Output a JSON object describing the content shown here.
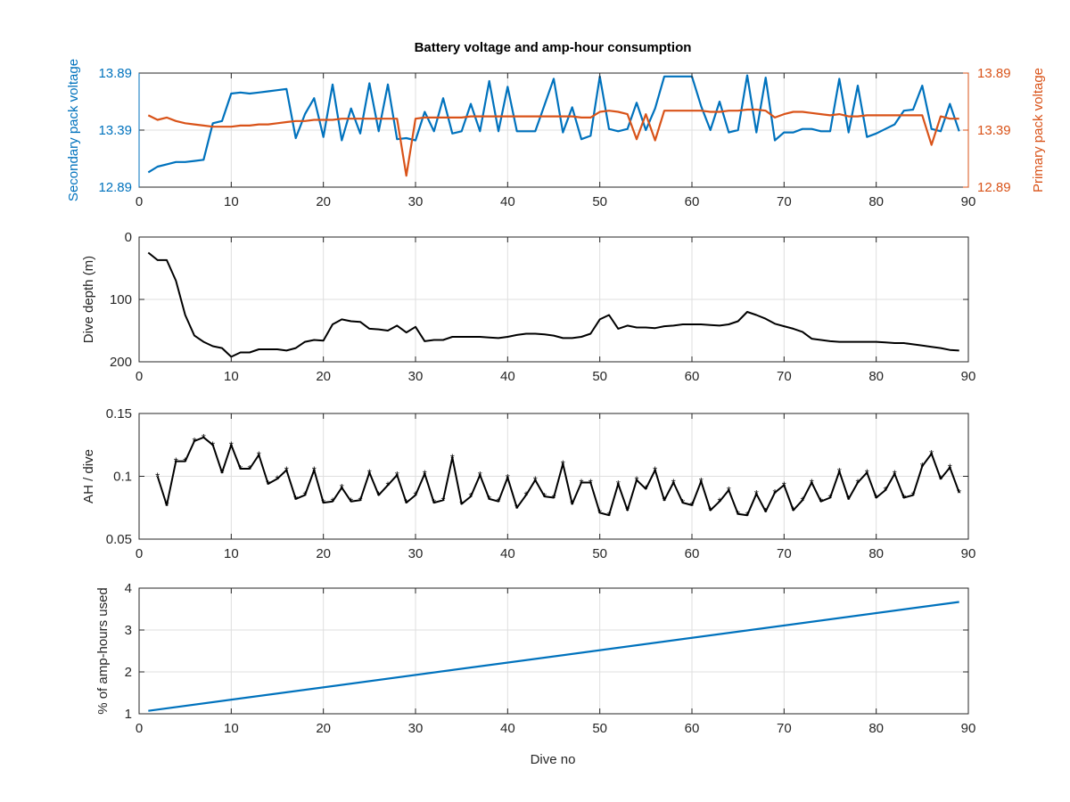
{
  "chart_data": [
    {
      "type": "line",
      "title": "Battery voltage and amp-hour consumption",
      "xlabel": "",
      "xlim": [
        0,
        90
      ],
      "xticks": [
        0,
        10,
        20,
        30,
        40,
        50,
        60,
        70,
        80,
        90
      ],
      "ylabel": "Secondary pack voltage",
      "ylim": [
        12.89,
        13.89
      ],
      "yticks": [
        "12.89",
        "13.39",
        "13.89"
      ],
      "y2label": "Primary pack voltage",
      "y2lim": [
        12.89,
        13.89
      ],
      "y2ticks": [
        "12.89",
        "13.39",
        "13.89"
      ],
      "grid": true,
      "colors": {
        "left": "#0072BD",
        "right": "#D95319"
      },
      "series": [
        {
          "axis": "left",
          "x": [
            1,
            2,
            3,
            4,
            5,
            6,
            7,
            8,
            9,
            10,
            11,
            12,
            13,
            14,
            15,
            16,
            17,
            18,
            19,
            20,
            21,
            22,
            23,
            24,
            25,
            26,
            27,
            28,
            29,
            30,
            31,
            32,
            33,
            34,
            35,
            36,
            37,
            38,
            39,
            40,
            41,
            42,
            43,
            44,
            45,
            46,
            47,
            48,
            49,
            50,
            51,
            52,
            53,
            54,
            55,
            56,
            57,
            58,
            59,
            60,
            61,
            62,
            63,
            64,
            65,
            66,
            67,
            68,
            69,
            70,
            71,
            72,
            73,
            74,
            75,
            76,
            77,
            78,
            79,
            80,
            81,
            82,
            83,
            84,
            85,
            86,
            87,
            88,
            89
          ],
          "values": [
            13.02,
            13.07,
            13.09,
            13.11,
            13.11,
            13.12,
            13.13,
            13.45,
            13.47,
            13.71,
            13.72,
            13.71,
            13.72,
            13.73,
            13.74,
            13.75,
            13.32,
            13.53,
            13.67,
            13.33,
            13.79,
            13.3,
            13.58,
            13.36,
            13.8,
            13.38,
            13.79,
            13.31,
            13.32,
            13.3,
            13.55,
            13.38,
            13.67,
            13.36,
            13.38,
            13.62,
            13.38,
            13.82,
            13.38,
            13.77,
            13.38,
            13.38,
            13.38,
            13.61,
            13.84,
            13.37,
            13.59,
            13.31,
            13.34,
            13.86,
            13.4,
            13.38,
            13.4,
            13.63,
            13.39,
            13.58,
            13.86,
            13.86,
            13.86,
            13.86,
            13.6,
            13.39,
            13.64,
            13.37,
            13.39,
            13.87,
            13.37,
            13.85,
            13.3,
            13.37,
            13.37,
            13.4,
            13.4,
            13.38,
            13.38,
            13.84,
            13.37,
            13.78,
            13.33,
            13.36,
            13.4,
            13.44,
            13.56,
            13.57,
            13.78,
            13.4,
            13.38,
            13.62,
            13.38
          ]
        },
        {
          "axis": "right",
          "x": [
            1,
            2,
            3,
            4,
            5,
            6,
            7,
            8,
            9,
            10,
            11,
            12,
            13,
            14,
            15,
            16,
            17,
            18,
            19,
            20,
            21,
            22,
            23,
            24,
            25,
            26,
            27,
            28,
            29,
            30,
            31,
            32,
            33,
            34,
            35,
            36,
            37,
            38,
            39,
            40,
            41,
            42,
            43,
            44,
            45,
            46,
            47,
            48,
            49,
            50,
            51,
            52,
            53,
            54,
            55,
            56,
            57,
            58,
            59,
            60,
            61,
            62,
            63,
            64,
            65,
            66,
            67,
            68,
            69,
            70,
            71,
            72,
            73,
            74,
            75,
            76,
            77,
            78,
            79,
            80,
            81,
            82,
            83,
            84,
            85,
            86,
            87,
            88,
            89
          ],
          "values": [
            13.52,
            13.48,
            13.5,
            13.47,
            13.45,
            13.44,
            13.43,
            13.42,
            13.42,
            13.42,
            13.43,
            13.43,
            13.44,
            13.44,
            13.45,
            13.46,
            13.47,
            13.47,
            13.48,
            13.48,
            13.48,
            13.49,
            13.49,
            13.49,
            13.49,
            13.49,
            13.49,
            13.49,
            12.99,
            13.49,
            13.5,
            13.5,
            13.5,
            13.5,
            13.5,
            13.51,
            13.51,
            13.51,
            13.51,
            13.51,
            13.51,
            13.51,
            13.51,
            13.51,
            13.51,
            13.51,
            13.51,
            13.5,
            13.5,
            13.55,
            13.56,
            13.55,
            13.53,
            13.31,
            13.53,
            13.3,
            13.56,
            13.56,
            13.56,
            13.56,
            13.56,
            13.55,
            13.55,
            13.56,
            13.56,
            13.57,
            13.57,
            13.56,
            13.5,
            13.53,
            13.55,
            13.55,
            13.54,
            13.53,
            13.52,
            13.53,
            13.51,
            13.51,
            13.52,
            13.52,
            13.52,
            13.52,
            13.52,
            13.52,
            13.52,
            13.26,
            13.51,
            13.49,
            13.49
          ]
        }
      ]
    },
    {
      "type": "line",
      "title": "",
      "xlabel": "",
      "ylabel": "Dive depth (m)",
      "xlim": [
        0,
        90
      ],
      "xticks": [
        0,
        10,
        20,
        30,
        40,
        50,
        60,
        70,
        80,
        90
      ],
      "ylim": [
        0,
        200
      ],
      "y_reversed": true,
      "yticks": [
        "0",
        "100",
        "200"
      ],
      "grid": true,
      "colors": {
        "line": "#000000"
      },
      "series": [
        {
          "x": [
            1,
            2,
            3,
            4,
            5,
            6,
            7,
            8,
            9,
            10,
            11,
            12,
            13,
            14,
            15,
            16,
            17,
            18,
            19,
            20,
            21,
            22,
            23,
            24,
            25,
            26,
            27,
            28,
            29,
            30,
            31,
            32,
            33,
            34,
            35,
            36,
            37,
            38,
            39,
            40,
            41,
            42,
            43,
            44,
            45,
            46,
            47,
            48,
            49,
            50,
            51,
            52,
            53,
            54,
            55,
            56,
            57,
            58,
            59,
            60,
            61,
            62,
            63,
            64,
            65,
            66,
            67,
            68,
            69,
            70,
            71,
            72,
            73,
            74,
            75,
            76,
            77,
            78,
            79,
            80,
            81,
            82,
            83,
            84,
            85,
            86,
            87,
            88,
            89
          ],
          "values": [
            25,
            37,
            37,
            70,
            125,
            158,
            168,
            175,
            178,
            192,
            185,
            185,
            180,
            180,
            180,
            182,
            178,
            168,
            165,
            166,
            140,
            132,
            135,
            136,
            147,
            148,
            150,
            142,
            153,
            144,
            167,
            165,
            165,
            160,
            160,
            160,
            160,
            161,
            162,
            160,
            157,
            155,
            155,
            156,
            158,
            162,
            162,
            160,
            155,
            132,
            125,
            147,
            142,
            145,
            145,
            146,
            143,
            142,
            140,
            140,
            140,
            141,
            142,
            140,
            135,
            120,
            125,
            131,
            139,
            143,
            147,
            152,
            163,
            165,
            167,
            168,
            168,
            168,
            168,
            168,
            169,
            170,
            170,
            172,
            174,
            176,
            178,
            181,
            182
          ]
        }
      ]
    },
    {
      "type": "line",
      "title": "",
      "xlabel": "",
      "ylabel": "AH / dive",
      "xlim": [
        0,
        90
      ],
      "xticks": [
        0,
        10,
        20,
        30,
        40,
        50,
        60,
        70,
        80,
        90
      ],
      "ylim": [
        0.05,
        0.15
      ],
      "yticks": [
        "0.05",
        "0.1",
        "0.15"
      ],
      "grid": true,
      "marker": "*",
      "colors": {
        "line": "#000000"
      },
      "series": [
        {
          "x": [
            2,
            3,
            4,
            5,
            6,
            7,
            8,
            9,
            10,
            11,
            12,
            13,
            14,
            15,
            16,
            17,
            18,
            19,
            20,
            21,
            22,
            23,
            24,
            25,
            26,
            27,
            28,
            29,
            30,
            31,
            32,
            33,
            34,
            35,
            36,
            37,
            38,
            39,
            40,
            41,
            42,
            43,
            44,
            45,
            46,
            47,
            48,
            49,
            50,
            51,
            52,
            53,
            54,
            55,
            56,
            57,
            58,
            59,
            60,
            61,
            62,
            63,
            64,
            65,
            66,
            67,
            68,
            69,
            70,
            71,
            72,
            73,
            74,
            75,
            76,
            77,
            78,
            79,
            80,
            81,
            82,
            83,
            84,
            85,
            86,
            87,
            88,
            89
          ],
          "values": [
            0.1,
            0.077,
            0.112,
            0.112,
            0.128,
            0.131,
            0.125,
            0.103,
            0.125,
            0.106,
            0.106,
            0.117,
            0.094,
            0.098,
            0.105,
            0.082,
            0.085,
            0.105,
            0.079,
            0.08,
            0.091,
            0.08,
            0.081,
            0.103,
            0.085,
            0.093,
            0.101,
            0.079,
            0.085,
            0.102,
            0.079,
            0.081,
            0.115,
            0.078,
            0.084,
            0.101,
            0.082,
            0.08,
            0.099,
            0.075,
            0.085,
            0.097,
            0.084,
            0.083,
            0.11,
            0.078,
            0.095,
            0.095,
            0.071,
            0.069,
            0.094,
            0.073,
            0.097,
            0.09,
            0.105,
            0.081,
            0.095,
            0.079,
            0.077,
            0.096,
            0.073,
            0.08,
            0.089,
            0.07,
            0.069,
            0.086,
            0.072,
            0.087,
            0.093,
            0.073,
            0.081,
            0.095,
            0.08,
            0.083,
            0.104,
            0.082,
            0.095,
            0.103,
            0.083,
            0.089,
            0.102,
            0.083,
            0.085,
            0.108,
            0.118,
            0.098,
            0.107,
            0.087
          ]
        }
      ]
    },
    {
      "type": "line",
      "title": "",
      "xlabel": "Dive no",
      "ylabel": "% of amp-hours used",
      "xlim": [
        0,
        90
      ],
      "xticks": [
        0,
        10,
        20,
        30,
        40,
        50,
        60,
        70,
        80,
        90
      ],
      "ylim": [
        1,
        4
      ],
      "yticks": [
        "1",
        "2",
        "3",
        "4"
      ],
      "grid": true,
      "colors": {
        "line": "#0072BD"
      },
      "series": [
        {
          "x": [
            1,
            89
          ],
          "values": [
            1.07,
            3.67
          ]
        }
      ]
    }
  ]
}
